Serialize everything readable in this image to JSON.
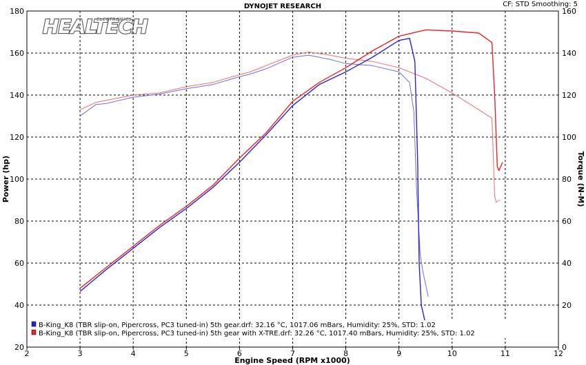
{
  "header": {
    "title": "DYNOJET RESEARCH",
    "settings": "CF: STD  Smoothing: 5"
  },
  "logo": {
    "brand": "HEALTECH",
    "tagline": "ELECTRONICS"
  },
  "chart_data": {
    "type": "line",
    "title": "DYNOJET RESEARCH",
    "xlabel": "Engine Speed (RPM x1000)",
    "ylabel_left": "Power (hp)",
    "ylabel_right": "Torque (N-M)",
    "xlim": [
      2,
      12
    ],
    "ylim_left": [
      20,
      180
    ],
    "ylim_right": [
      0,
      160
    ],
    "x_ticks": [
      "2",
      "3",
      "4",
      "5",
      "6",
      "7",
      "8",
      "9",
      "10",
      "11",
      "12"
    ],
    "y_left_ticks": [
      "20",
      "40",
      "60",
      "80",
      "100",
      "120",
      "140",
      "160",
      "180"
    ],
    "y_right_ticks": [
      "0",
      "20",
      "40",
      "60",
      "80",
      "100",
      "120",
      "140",
      "160"
    ],
    "grid": true,
    "legend_position": "bottom-left",
    "colors": {
      "blue": "#2222dd",
      "red": "#ee2222",
      "blue_light": "#6a6aee",
      "red_light": "#f06a6a"
    },
    "series": [
      {
        "name": "B-King_K8 (TBR slip-on, Pipercross, PC3 tuned-in) 5th gear.drf: 32.16 °C, 1017.06 mBars, Humidity: 25%, STD: 1.02",
        "color": "#2222dd",
        "power": [
          [
            3.0,
            46.5
          ],
          [
            3.5,
            57
          ],
          [
            4.0,
            67
          ],
          [
            4.5,
            77
          ],
          [
            5.0,
            86
          ],
          [
            5.5,
            96
          ],
          [
            6.0,
            108
          ],
          [
            6.5,
            121
          ],
          [
            7.0,
            135
          ],
          [
            7.5,
            145
          ],
          [
            8.0,
            151
          ],
          [
            8.5,
            158
          ],
          [
            9.0,
            166
          ],
          [
            9.2,
            167
          ],
          [
            9.3,
            156
          ],
          [
            9.35,
            110
          ],
          [
            9.38,
            60
          ],
          [
            9.42,
            40
          ],
          [
            9.5,
            31
          ]
        ],
        "torque": [
          [
            3.0,
            110
          ],
          [
            3.3,
            115.5
          ],
          [
            3.5,
            116
          ],
          [
            4.0,
            119
          ],
          [
            4.5,
            120.5
          ],
          [
            5.0,
            123
          ],
          [
            5.5,
            125
          ],
          [
            5.9,
            128
          ],
          [
            6.2,
            130
          ],
          [
            6.5,
            132.5
          ],
          [
            7.0,
            138
          ],
          [
            7.3,
            139
          ],
          [
            7.7,
            137
          ],
          [
            8.0,
            135
          ],
          [
            8.5,
            134
          ],
          [
            9.0,
            131
          ],
          [
            9.2,
            126
          ],
          [
            9.28,
            112
          ],
          [
            9.33,
            76
          ],
          [
            9.4,
            44
          ],
          [
            9.45,
            36
          ],
          [
            9.55,
            24
          ]
        ]
      },
      {
        "name": "B-King_K8 (TBR slip-on, Pipercross, PC3 tuned-in) 5th gear with X-TRE.drf: 32.26 °C, 1017.40 mBars, Humidity: 25%, STD: 1.02",
        "color": "#ee2222",
        "power": [
          [
            3.0,
            48
          ],
          [
            3.5,
            58
          ],
          [
            4.0,
            68
          ],
          [
            4.5,
            78
          ],
          [
            5.0,
            87
          ],
          [
            5.5,
            97
          ],
          [
            6.0,
            110
          ],
          [
            6.5,
            122
          ],
          [
            7.0,
            137
          ],
          [
            7.5,
            146
          ],
          [
            8.0,
            153
          ],
          [
            8.5,
            161
          ],
          [
            9.0,
            168
          ],
          [
            9.5,
            171
          ],
          [
            10.0,
            170.5
          ],
          [
            10.5,
            169.5
          ],
          [
            10.75,
            165
          ],
          [
            10.8,
            140
          ],
          [
            10.83,
            120
          ],
          [
            10.85,
            106
          ],
          [
            10.88,
            104
          ],
          [
            10.95,
            108
          ]
        ],
        "torque": [
          [
            3.0,
            113
          ],
          [
            3.3,
            116.5
          ],
          [
            3.5,
            117.5
          ],
          [
            4.0,
            120
          ],
          [
            4.5,
            121
          ],
          [
            5.0,
            124
          ],
          [
            5.5,
            126
          ],
          [
            5.9,
            129
          ],
          [
            6.2,
            131
          ],
          [
            6.5,
            134
          ],
          [
            7.0,
            139
          ],
          [
            7.3,
            140.5
          ],
          [
            7.7,
            139
          ],
          [
            8.0,
            137.5
          ],
          [
            8.5,
            136
          ],
          [
            9.0,
            133
          ],
          [
            9.5,
            128
          ],
          [
            10.0,
            121
          ],
          [
            10.5,
            113
          ],
          [
            10.75,
            109
          ],
          [
            10.8,
            72
          ],
          [
            10.83,
            69
          ],
          [
            10.9,
            70
          ]
        ]
      }
    ]
  }
}
